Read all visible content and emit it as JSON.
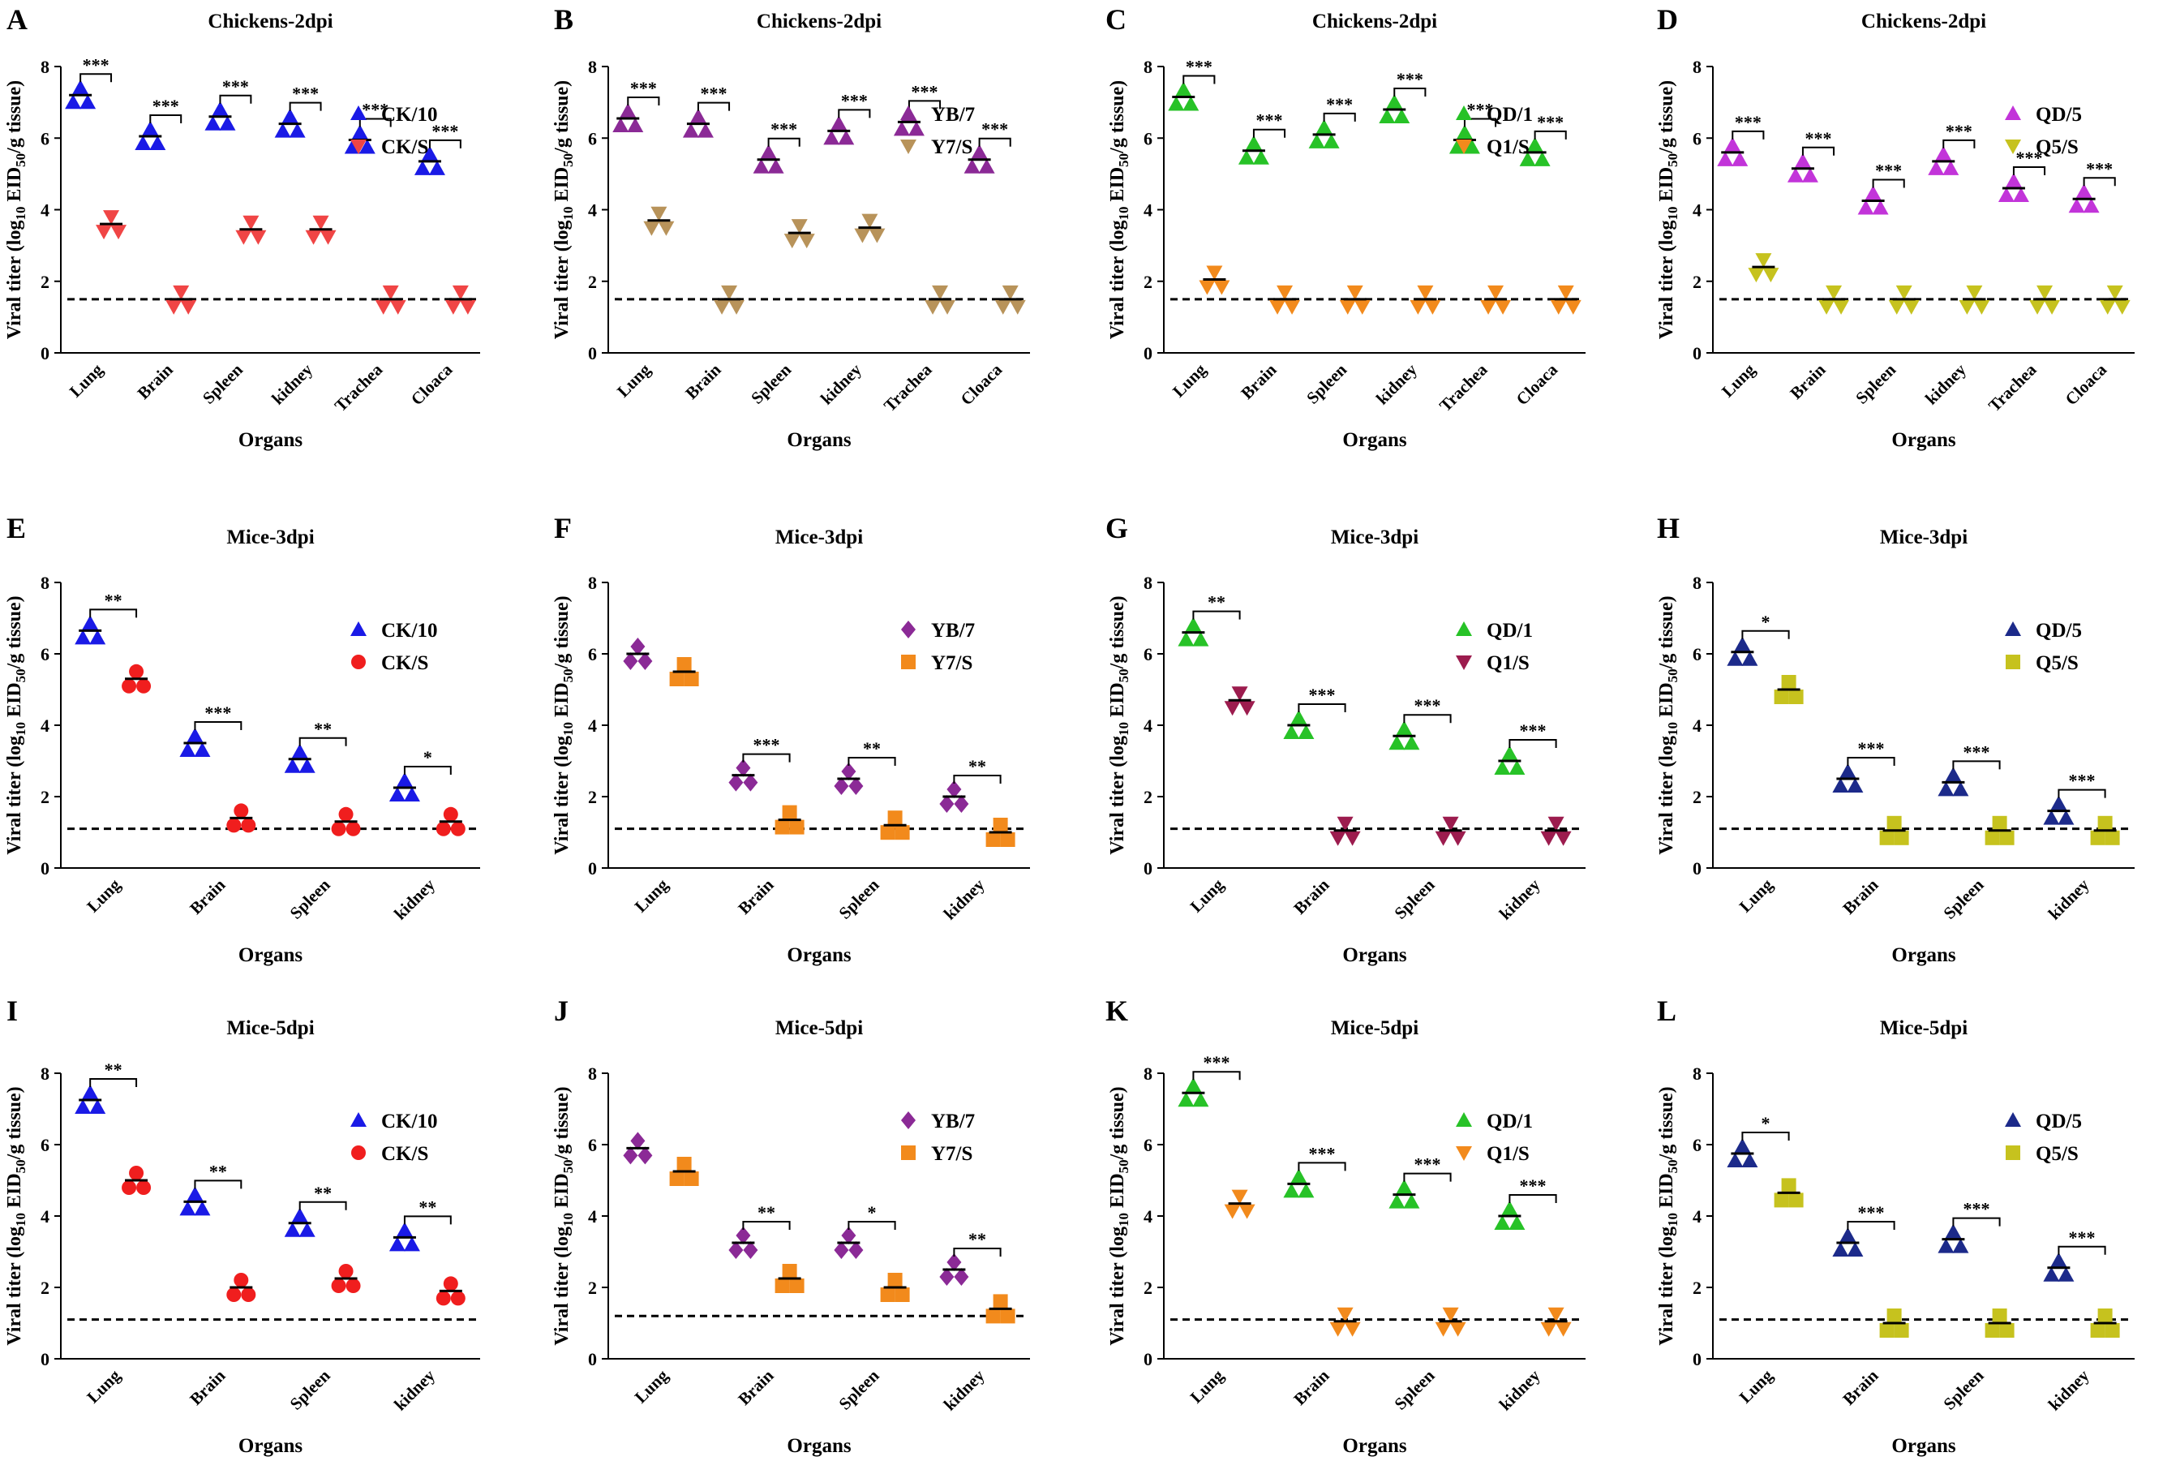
{
  "figure": {
    "y_axis_label": "Viral titer (log10 EID50/g tissue)",
    "x_axis_label": "Organs"
  },
  "chart_data": [
    {
      "panel": "A",
      "type": "scatter",
      "title": "Chickens-2dpi",
      "ylim": [
        0,
        8
      ],
      "yticks": [
        0,
        2,
        4,
        6,
        8
      ],
      "xlabel": "Organs",
      "ylabel": "Viral titer (log10 EID50/g tissue)",
      "detection_limit": 1.5,
      "categories": [
        "Lung",
        "Brain",
        "Spleen",
        "kidney",
        "Trachea",
        "Cloaca"
      ],
      "series": [
        {
          "name": "CK/10",
          "color": "#1a1ae6",
          "marker": "triangle-up",
          "means": [
            7.2,
            6.05,
            6.6,
            6.4,
            5.95,
            5.35
          ]
        },
        {
          "name": "CK/S",
          "color": "#f04545",
          "marker": "triangle-down",
          "means": [
            3.6,
            1.5,
            3.45,
            3.45,
            1.5,
            1.5
          ]
        }
      ],
      "significance": [
        "***",
        "***",
        "***",
        "***",
        "***",
        "***"
      ]
    },
    {
      "panel": "B",
      "type": "scatter",
      "title": "Chickens-2dpi",
      "ylim": [
        0,
        8
      ],
      "yticks": [
        0,
        2,
        4,
        6,
        8
      ],
      "xlabel": "Organs",
      "ylabel": "Viral titer (log10 EID50/g tissue)",
      "detection_limit": 1.5,
      "categories": [
        "Lung",
        "Brain",
        "Spleen",
        "kidney",
        "Trachea",
        "Cloaca"
      ],
      "series": [
        {
          "name": "YB/7",
          "color": "#8b2a96",
          "marker": "triangle-up",
          "means": [
            6.55,
            6.4,
            5.4,
            6.2,
            6.45,
            5.4
          ]
        },
        {
          "name": "Y7/S",
          "color": "#b8935a",
          "marker": "triangle-down",
          "means": [
            3.7,
            1.5,
            3.35,
            3.5,
            1.5,
            1.5
          ]
        }
      ],
      "significance": [
        "***",
        "***",
        "***",
        "***",
        "***",
        "***"
      ]
    },
    {
      "panel": "C",
      "type": "scatter",
      "title": "Chickens-2dpi",
      "ylim": [
        0,
        8
      ],
      "yticks": [
        0,
        2,
        4,
        6,
        8
      ],
      "xlabel": "Organs",
      "ylabel": "Viral titer (log10 EID50/g tissue)",
      "detection_limit": 1.5,
      "categories": [
        "Lung",
        "Brain",
        "Spleen",
        "kidney",
        "Trachea",
        "Cloaca"
      ],
      "series": [
        {
          "name": "QD/1",
          "color": "#27c227",
          "marker": "triangle-up",
          "means": [
            7.15,
            5.65,
            6.1,
            6.8,
            5.95,
            5.6
          ]
        },
        {
          "name": "Q1/S",
          "color": "#f28a1c",
          "marker": "triangle-down",
          "means": [
            2.05,
            1.5,
            1.5,
            1.5,
            1.5,
            1.5
          ]
        }
      ],
      "significance": [
        "***",
        "***",
        "***",
        "***",
        "***",
        "***"
      ]
    },
    {
      "panel": "D",
      "type": "scatter",
      "title": "Chickens-2dpi",
      "ylim": [
        0,
        8
      ],
      "yticks": [
        0,
        2,
        4,
        6,
        8
      ],
      "xlabel": "Organs",
      "ylabel": "Viral titer (log10 EID50/g tissue)",
      "detection_limit": 1.5,
      "categories": [
        "Lung",
        "Brain",
        "Spleen",
        "kidney",
        "Trachea",
        "Cloaca"
      ],
      "series": [
        {
          "name": "QD/5",
          "color": "#c234d9",
          "marker": "triangle-up",
          "means": [
            5.6,
            5.15,
            4.25,
            5.35,
            4.6,
            4.3
          ]
        },
        {
          "name": "Q5/S",
          "color": "#c6c21e",
          "marker": "triangle-down",
          "means": [
            2.4,
            1.5,
            1.5,
            1.5,
            1.5,
            1.5
          ]
        }
      ],
      "significance": [
        "***",
        "***",
        "***",
        "***",
        "***",
        "***"
      ]
    },
    {
      "panel": "E",
      "type": "scatter",
      "title": "Mice-3dpi",
      "ylim": [
        0,
        8
      ],
      "yticks": [
        0,
        2,
        4,
        6,
        8
      ],
      "xlabel": "Organs",
      "ylabel": "Viral titer (log10 EID50/g tissue)",
      "detection_limit": 1.1,
      "categories": [
        "Lung",
        "Brain",
        "Spleen",
        "kidney"
      ],
      "series": [
        {
          "name": "CK/10",
          "color": "#1a1ae6",
          "marker": "triangle-up",
          "means": [
            6.65,
            3.5,
            3.05,
            2.25
          ]
        },
        {
          "name": "CK/S",
          "color": "#f01e1e",
          "marker": "circle",
          "means": [
            5.3,
            1.4,
            1.3,
            1.3
          ]
        }
      ],
      "significance": [
        "**",
        "***",
        "**",
        "*"
      ]
    },
    {
      "panel": "F",
      "type": "scatter",
      "title": "Mice-3dpi",
      "ylim": [
        0,
        8
      ],
      "yticks": [
        0,
        2,
        4,
        6,
        8
      ],
      "xlabel": "Organs",
      "ylabel": "Viral titer (log10 EID50/g tissue)",
      "detection_limit": 1.1,
      "categories": [
        "Lung",
        "Brain",
        "Spleen",
        "kidney"
      ],
      "series": [
        {
          "name": "YB/7",
          "color": "#8b2a96",
          "marker": "diamond",
          "means": [
            6.0,
            2.6,
            2.5,
            2.0
          ]
        },
        {
          "name": "Y7/S",
          "color": "#f28a1c",
          "marker": "square",
          "means": [
            5.5,
            1.35,
            1.2,
            1.0
          ]
        }
      ],
      "significance": [
        null,
        "***",
        "**",
        "**"
      ]
    },
    {
      "panel": "G",
      "type": "scatter",
      "title": "Mice-3dpi",
      "ylim": [
        0,
        8
      ],
      "yticks": [
        0,
        2,
        4,
        6,
        8
      ],
      "xlabel": "Organs",
      "ylabel": "Viral titer (log10 EID50/g tissue)",
      "detection_limit": 1.1,
      "categories": [
        "Lung",
        "Brain",
        "Spleen",
        "kidney"
      ],
      "series": [
        {
          "name": "QD/1",
          "color": "#27c227",
          "marker": "triangle-up",
          "means": [
            6.6,
            4.0,
            3.7,
            3.0
          ]
        },
        {
          "name": "Q1/S",
          "color": "#9c1c4e",
          "marker": "triangle-down",
          "means": [
            4.7,
            1.05,
            1.05,
            1.05
          ]
        }
      ],
      "significance": [
        "**",
        "***",
        "***",
        "***"
      ]
    },
    {
      "panel": "H",
      "type": "scatter",
      "title": "Mice-3dpi",
      "ylim": [
        0,
        8
      ],
      "yticks": [
        0,
        2,
        4,
        6,
        8
      ],
      "xlabel": "Organs",
      "ylabel": "Viral titer (log10 EID50/g tissue)",
      "detection_limit": 1.1,
      "categories": [
        "Lung",
        "Brain",
        "Spleen",
        "kidney"
      ],
      "series": [
        {
          "name": "QD/5",
          "color": "#1c2a8a",
          "marker": "triangle-up",
          "means": [
            6.05,
            2.5,
            2.4,
            1.6
          ]
        },
        {
          "name": "Q5/S",
          "color": "#c6c21e",
          "marker": "square",
          "means": [
            5.0,
            1.05,
            1.05,
            1.05
          ]
        }
      ],
      "significance": [
        "*",
        "***",
        "***",
        "***"
      ]
    },
    {
      "panel": "I",
      "type": "scatter",
      "title": "Mice-5dpi",
      "ylim": [
        0,
        8
      ],
      "yticks": [
        0,
        2,
        4,
        6,
        8
      ],
      "xlabel": "Organs",
      "ylabel": "Viral titer (log10 EID50/g tissue)",
      "detection_limit": 1.1,
      "categories": [
        "Lung",
        "Brain",
        "Spleen",
        "kidney"
      ],
      "series": [
        {
          "name": "CK/10",
          "color": "#1a1ae6",
          "marker": "triangle-up",
          "means": [
            7.25,
            4.4,
            3.8,
            3.4
          ]
        },
        {
          "name": "CK/S",
          "color": "#f01e1e",
          "marker": "circle",
          "means": [
            5.0,
            2.0,
            2.25,
            1.9
          ]
        }
      ],
      "significance": [
        "**",
        "**",
        "**",
        "**"
      ]
    },
    {
      "panel": "J",
      "type": "scatter",
      "title": "Mice-5dpi",
      "ylim": [
        0,
        8
      ],
      "yticks": [
        0,
        2,
        4,
        6,
        8
      ],
      "xlabel": "Organs",
      "ylabel": "Viral titer (log10 EID50/g tissue)",
      "detection_limit": 1.2,
      "categories": [
        "Lung",
        "Brain",
        "Spleen",
        "kidney"
      ],
      "series": [
        {
          "name": "YB/7",
          "color": "#8b2a96",
          "marker": "diamond",
          "means": [
            5.9,
            3.25,
            3.25,
            2.5
          ]
        },
        {
          "name": "Y7/S",
          "color": "#f28a1c",
          "marker": "square",
          "means": [
            5.25,
            2.25,
            2.0,
            1.4
          ]
        }
      ],
      "significance": [
        null,
        "**",
        "*",
        "**"
      ]
    },
    {
      "panel": "K",
      "type": "scatter",
      "title": "Mice-5dpi",
      "ylim": [
        0,
        8
      ],
      "yticks": [
        0,
        2,
        4,
        6,
        8
      ],
      "xlabel": "Organs",
      "ylabel": "Viral titer (log10 EID50/g tissue)",
      "detection_limit": 1.1,
      "categories": [
        "Lung",
        "Brain",
        "Spleen",
        "kidney"
      ],
      "series": [
        {
          "name": "QD/1",
          "color": "#27c227",
          "marker": "triangle-up",
          "means": [
            7.45,
            4.9,
            4.6,
            4.0
          ]
        },
        {
          "name": "Q1/S",
          "color": "#f28a1c",
          "marker": "triangle-down",
          "means": [
            4.35,
            1.05,
            1.05,
            1.05
          ]
        }
      ],
      "significance": [
        "***",
        "***",
        "***",
        "***"
      ]
    },
    {
      "panel": "L",
      "type": "scatter",
      "title": "Mice-5dpi",
      "ylim": [
        0,
        8
      ],
      "yticks": [
        0,
        2,
        4,
        6,
        8
      ],
      "xlabel": "Organs",
      "ylabel": "Viral titer (log10 EID50/g tissue)",
      "detection_limit": 1.1,
      "categories": [
        "Lung",
        "Brain",
        "Spleen",
        "kidney"
      ],
      "series": [
        {
          "name": "QD/5",
          "color": "#1c2a8a",
          "marker": "triangle-up",
          "means": [
            5.75,
            3.25,
            3.35,
            2.55
          ]
        },
        {
          "name": "Q5/S",
          "color": "#c6c21e",
          "marker": "square",
          "means": [
            4.65,
            1.0,
            1.0,
            1.0
          ]
        }
      ],
      "significance": [
        "*",
        "***",
        "***",
        "***"
      ]
    }
  ]
}
